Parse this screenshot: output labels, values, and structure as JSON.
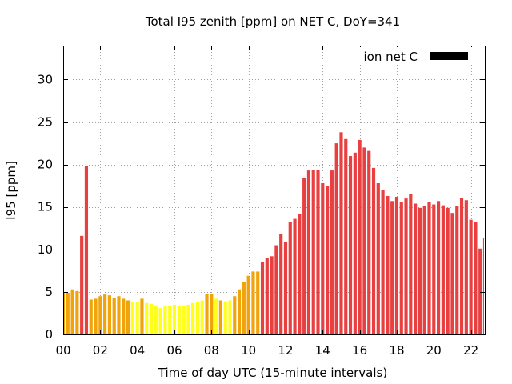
{
  "chart_data": {
    "type": "bar",
    "title": "Total I95 zenith [ppm] on NET C, DoY=341",
    "xlabel": "Time of day UTC (15-minute intervals)",
    "ylabel": "I95 [ppm]",
    "xlim": [
      0,
      22.75
    ],
    "ylim": [
      0,
      34
    ],
    "xticks": [
      {
        "value": 0,
        "label": "00"
      },
      {
        "value": 2,
        "label": "02"
      },
      {
        "value": 4,
        "label": "04"
      },
      {
        "value": 6,
        "label": "06"
      },
      {
        "value": 8,
        "label": "08"
      },
      {
        "value": 10,
        "label": "10"
      },
      {
        "value": 12,
        "label": "12"
      },
      {
        "value": 14,
        "label": "14"
      },
      {
        "value": 16,
        "label": "16"
      },
      {
        "value": 18,
        "label": "18"
      },
      {
        "value": 20,
        "label": "20"
      },
      {
        "value": 22,
        "label": "22"
      }
    ],
    "yticks": [
      {
        "value": 0,
        "label": "0"
      },
      {
        "value": 5,
        "label": "5"
      },
      {
        "value": 10,
        "label": "10"
      },
      {
        "value": 15,
        "label": "15"
      },
      {
        "value": 20,
        "label": "20"
      },
      {
        "value": 25,
        "label": "25"
      },
      {
        "value": 30,
        "label": "30"
      }
    ],
    "grid": true,
    "legend": {
      "position": "top-right",
      "label": "ion net C",
      "color": "#000000"
    },
    "colors": {
      "orange": "#f0a30a",
      "yellow": "#ffff1a",
      "red": "#e84040"
    },
    "bar_interval_hours": 0.25,
    "bars": [
      {
        "x": 0.0,
        "y": 5.0,
        "c": "orange"
      },
      {
        "x": 0.25,
        "y": 4.9,
        "c": "orange"
      },
      {
        "x": 0.5,
        "y": 5.3,
        "c": "orange"
      },
      {
        "x": 0.75,
        "y": 5.1,
        "c": "orange"
      },
      {
        "x": 1.0,
        "y": 11.6,
        "c": "red"
      },
      {
        "x": 1.25,
        "y": 19.8,
        "c": "red"
      },
      {
        "x": 1.5,
        "y": 4.1,
        "c": "orange"
      },
      {
        "x": 1.75,
        "y": 4.2,
        "c": "orange"
      },
      {
        "x": 2.0,
        "y": 4.5,
        "c": "orange"
      },
      {
        "x": 2.25,
        "y": 4.7,
        "c": "orange"
      },
      {
        "x": 2.5,
        "y": 4.6,
        "c": "orange"
      },
      {
        "x": 2.75,
        "y": 4.3,
        "c": "orange"
      },
      {
        "x": 3.0,
        "y": 4.5,
        "c": "orange"
      },
      {
        "x": 3.25,
        "y": 4.2,
        "c": "orange"
      },
      {
        "x": 3.5,
        "y": 4.0,
        "c": "orange"
      },
      {
        "x": 3.75,
        "y": 3.8,
        "c": "yellow"
      },
      {
        "x": 4.0,
        "y": 3.8,
        "c": "yellow"
      },
      {
        "x": 4.25,
        "y": 4.2,
        "c": "orange"
      },
      {
        "x": 4.5,
        "y": 3.7,
        "c": "yellow"
      },
      {
        "x": 4.75,
        "y": 3.6,
        "c": "yellow"
      },
      {
        "x": 5.0,
        "y": 3.4,
        "c": "yellow"
      },
      {
        "x": 5.25,
        "y": 3.1,
        "c": "yellow"
      },
      {
        "x": 5.5,
        "y": 3.3,
        "c": "yellow"
      },
      {
        "x": 5.75,
        "y": 3.4,
        "c": "yellow"
      },
      {
        "x": 6.0,
        "y": 3.5,
        "c": "yellow"
      },
      {
        "x": 6.25,
        "y": 3.4,
        "c": "yellow"
      },
      {
        "x": 6.5,
        "y": 3.3,
        "c": "yellow"
      },
      {
        "x": 6.75,
        "y": 3.5,
        "c": "yellow"
      },
      {
        "x": 7.0,
        "y": 3.7,
        "c": "yellow"
      },
      {
        "x": 7.25,
        "y": 3.8,
        "c": "yellow"
      },
      {
        "x": 7.5,
        "y": 4.0,
        "c": "yellow"
      },
      {
        "x": 7.75,
        "y": 4.8,
        "c": "orange"
      },
      {
        "x": 8.0,
        "y": 4.8,
        "c": "orange"
      },
      {
        "x": 8.25,
        "y": 4.2,
        "c": "yellow"
      },
      {
        "x": 8.5,
        "y": 4.0,
        "c": "orange"
      },
      {
        "x": 8.75,
        "y": 3.9,
        "c": "yellow"
      },
      {
        "x": 9.0,
        "y": 4.0,
        "c": "yellow"
      },
      {
        "x": 9.25,
        "y": 4.5,
        "c": "orange"
      },
      {
        "x": 9.5,
        "y": 5.3,
        "c": "orange"
      },
      {
        "x": 9.75,
        "y": 6.2,
        "c": "orange"
      },
      {
        "x": 10.0,
        "y": 6.9,
        "c": "orange"
      },
      {
        "x": 10.25,
        "y": 7.4,
        "c": "orange"
      },
      {
        "x": 10.5,
        "y": 7.4,
        "c": "orange"
      },
      {
        "x": 10.75,
        "y": 8.5,
        "c": "red"
      },
      {
        "x": 11.0,
        "y": 9.0,
        "c": "red"
      },
      {
        "x": 11.25,
        "y": 9.2,
        "c": "red"
      },
      {
        "x": 11.5,
        "y": 10.5,
        "c": "red"
      },
      {
        "x": 11.75,
        "y": 11.8,
        "c": "red"
      },
      {
        "x": 12.0,
        "y": 10.9,
        "c": "red"
      },
      {
        "x": 12.25,
        "y": 13.2,
        "c": "red"
      },
      {
        "x": 12.5,
        "y": 13.6,
        "c": "red"
      },
      {
        "x": 12.75,
        "y": 14.2,
        "c": "red"
      },
      {
        "x": 13.0,
        "y": 18.4,
        "c": "red"
      },
      {
        "x": 13.25,
        "y": 19.3,
        "c": "red"
      },
      {
        "x": 13.5,
        "y": 19.4,
        "c": "red"
      },
      {
        "x": 13.75,
        "y": 19.4,
        "c": "red"
      },
      {
        "x": 14.0,
        "y": 17.8,
        "c": "red"
      },
      {
        "x": 14.25,
        "y": 17.5,
        "c": "red"
      },
      {
        "x": 14.5,
        "y": 19.3,
        "c": "red"
      },
      {
        "x": 14.75,
        "y": 22.5,
        "c": "red"
      },
      {
        "x": 15.0,
        "y": 23.8,
        "c": "red"
      },
      {
        "x": 15.25,
        "y": 23.0,
        "c": "red"
      },
      {
        "x": 15.5,
        "y": 21.0,
        "c": "red"
      },
      {
        "x": 15.75,
        "y": 21.4,
        "c": "red"
      },
      {
        "x": 16.0,
        "y": 22.9,
        "c": "red"
      },
      {
        "x": 16.25,
        "y": 22.0,
        "c": "red"
      },
      {
        "x": 16.5,
        "y": 21.6,
        "c": "red"
      },
      {
        "x": 16.75,
        "y": 19.6,
        "c": "red"
      },
      {
        "x": 17.0,
        "y": 17.8,
        "c": "red"
      },
      {
        "x": 17.25,
        "y": 17.0,
        "c": "red"
      },
      {
        "x": 17.5,
        "y": 16.3,
        "c": "red"
      },
      {
        "x": 17.75,
        "y": 15.7,
        "c": "red"
      },
      {
        "x": 18.0,
        "y": 16.2,
        "c": "red"
      },
      {
        "x": 18.25,
        "y": 15.6,
        "c": "red"
      },
      {
        "x": 18.5,
        "y": 16.0,
        "c": "red"
      },
      {
        "x": 18.75,
        "y": 16.5,
        "c": "red"
      },
      {
        "x": 19.0,
        "y": 15.4,
        "c": "red"
      },
      {
        "x": 19.25,
        "y": 14.9,
        "c": "red"
      },
      {
        "x": 19.5,
        "y": 15.1,
        "c": "red"
      },
      {
        "x": 19.75,
        "y": 15.6,
        "c": "red"
      },
      {
        "x": 20.0,
        "y": 15.3,
        "c": "red"
      },
      {
        "x": 20.25,
        "y": 15.7,
        "c": "red"
      },
      {
        "x": 20.5,
        "y": 15.2,
        "c": "red"
      },
      {
        "x": 20.75,
        "y": 14.9,
        "c": "red"
      },
      {
        "x": 21.0,
        "y": 14.3,
        "c": "red"
      },
      {
        "x": 21.25,
        "y": 15.1,
        "c": "red"
      },
      {
        "x": 21.5,
        "y": 16.1,
        "c": "red"
      },
      {
        "x": 21.75,
        "y": 15.8,
        "c": "red"
      },
      {
        "x": 22.0,
        "y": 13.5,
        "c": "red"
      },
      {
        "x": 22.25,
        "y": 13.2,
        "c": "red"
      },
      {
        "x": 22.5,
        "y": 10.1,
        "c": "red"
      },
      {
        "x": 22.75,
        "y": 11.3,
        "c": "red"
      }
    ]
  }
}
